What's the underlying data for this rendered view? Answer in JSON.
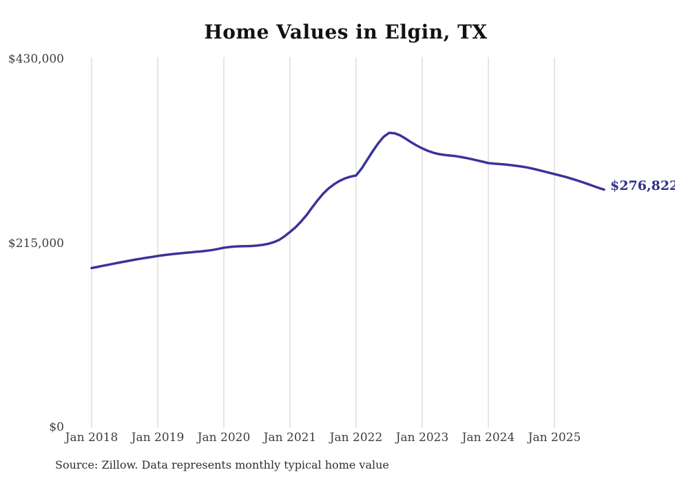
{
  "title": "Home Values in Elgin, TX",
  "source_note": "Source: Zillow. Data represents monthly typical home value",
  "chart_data": {
    "type": "line",
    "title": "Home Values in Elgin, TX",
    "series_name": "Monthly typical home value",
    "unit": "USD",
    "line_color": "#3a339b",
    "end_label_color": "#333189",
    "grid_color": "#cbcbcb",
    "axis_text_color": "#3d3d3d",
    "grid": "vertical-only",
    "legend": "none",
    "ylim": [
      0,
      430000
    ],
    "end_label": "$276,822",
    "end_value": 276822,
    "y_ticks": [
      {
        "label": "$430,000",
        "value": 430000
      },
      {
        "label": "$215,000",
        "value": 215000
      },
      {
        "label": "$0",
        "value": 0
      }
    ],
    "x_ticks": [
      {
        "label": "Jan 2018",
        "month_index": 0
      },
      {
        "label": "Jan 2019",
        "month_index": 12
      },
      {
        "label": "Jan 2020",
        "month_index": 24
      },
      {
        "label": "Jan 2021",
        "month_index": 36
      },
      {
        "label": "Jan 2022",
        "month_index": 48
      },
      {
        "label": "Jan 2023",
        "month_index": 60
      },
      {
        "label": "Jan 2024",
        "month_index": 72
      },
      {
        "label": "Jan 2025",
        "month_index": 84
      }
    ],
    "months": [
      "2018-01",
      "2018-02",
      "2018-03",
      "2018-04",
      "2018-05",
      "2018-06",
      "2018-07",
      "2018-08",
      "2018-09",
      "2018-10",
      "2018-11",
      "2018-12",
      "2019-01",
      "2019-02",
      "2019-03",
      "2019-04",
      "2019-05",
      "2019-06",
      "2019-07",
      "2019-08",
      "2019-09",
      "2019-10",
      "2019-11",
      "2019-12",
      "2020-01",
      "2020-02",
      "2020-03",
      "2020-04",
      "2020-05",
      "2020-06",
      "2020-07",
      "2020-08",
      "2020-09",
      "2020-10",
      "2020-11",
      "2020-12",
      "2021-01",
      "2021-02",
      "2021-03",
      "2021-04",
      "2021-05",
      "2021-06",
      "2021-07",
      "2021-08",
      "2021-09",
      "2021-10",
      "2021-11",
      "2021-12",
      "2022-01",
      "2022-02",
      "2022-03",
      "2022-04",
      "2022-05",
      "2022-06",
      "2022-07",
      "2022-08",
      "2022-09",
      "2022-10",
      "2022-11",
      "2022-12",
      "2023-01",
      "2023-02",
      "2023-03",
      "2023-04",
      "2023-05",
      "2023-06",
      "2023-07",
      "2023-08",
      "2023-09",
      "2023-10",
      "2023-11",
      "2023-12",
      "2024-01",
      "2024-02",
      "2024-03",
      "2024-04",
      "2024-05",
      "2024-06",
      "2024-07",
      "2024-08",
      "2024-09",
      "2024-10",
      "2024-11",
      "2024-12",
      "2025-01",
      "2025-02",
      "2025-03",
      "2025-04",
      "2025-05",
      "2025-06",
      "2025-07",
      "2025-08",
      "2025-09",
      "2025-10"
    ],
    "values": [
      185300,
      186500,
      187800,
      189000,
      190300,
      191600,
      192800,
      194000,
      195200,
      196300,
      197300,
      198300,
      199300,
      200200,
      201000,
      201700,
      202400,
      203000,
      203600,
      204200,
      204800,
      205500,
      206400,
      207600,
      209000,
      209800,
      210400,
      210700,
      210800,
      211000,
      211500,
      212300,
      213500,
      215300,
      218000,
      222200,
      227400,
      232800,
      239500,
      247000,
      255800,
      264300,
      272000,
      278200,
      283100,
      287000,
      290000,
      292000,
      293400,
      301500,
      311500,
      321500,
      330800,
      338500,
      343200,
      342600,
      340200,
      336400,
      332100,
      328300,
      325000,
      322200,
      320000,
      318400,
      317400,
      316700,
      316000,
      315000,
      313800,
      312400,
      310900,
      309400,
      307800,
      307200,
      306700,
      306200,
      305500,
      304700,
      303800,
      302800,
      301400,
      299900,
      298300,
      296700,
      295000,
      293400,
      291700,
      289800,
      287800,
      285700,
      283500,
      281200,
      278900,
      276822
    ]
  }
}
